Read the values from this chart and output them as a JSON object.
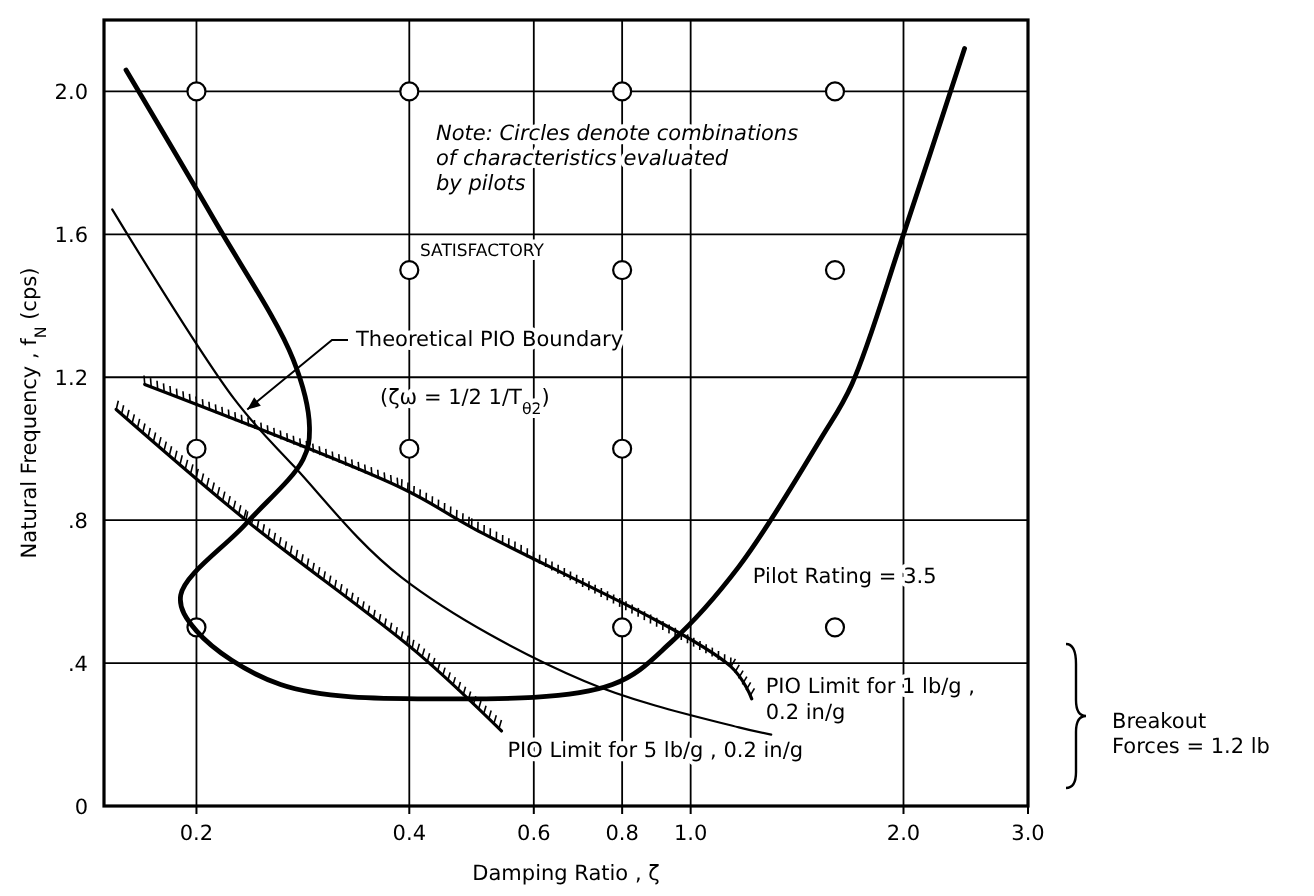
{
  "chart_data": {
    "type": "line",
    "xlabel": "Damping Ratio , ζ",
    "ylabel": "Natural Frequency , f$_{N}$ (cps)",
    "log": "x",
    "grid": true,
    "xlim": [
      0.148,
      3.0
    ],
    "ylim": [
      0,
      2.2
    ],
    "xticks": [
      0.2,
      0.4,
      0.6,
      0.8,
      {
        "value": 1.0,
        "label": "1.0"
      },
      {
        "value": 2.0,
        "label": "2.0"
      },
      {
        "value": 3.0,
        "label": "3.0"
      }
    ],
    "yticks": [
      0,
      {
        "value": 0.4,
        "label": ".4"
      },
      {
        "value": 0.8,
        "label": ".8"
      },
      1.2,
      1.6,
      {
        "value": 2.0,
        "label": "2.0"
      }
    ],
    "series": [
      {
        "type": "scatter",
        "marker": "circle",
        "color": "#000000",
        "x": [
          0.2,
          0.4,
          0.8,
          1.6,
          0.4,
          0.8,
          1.6,
          0.2,
          0.4,
          0.8,
          0.2,
          0.8,
          1.6
        ],
        "values": [
          2.0,
          2.0,
          2.0,
          2.0,
          1.5,
          1.5,
          1.5,
          1.0,
          1.0,
          1.0,
          0.5,
          0.5,
          0.5
        ]
      },
      {
        "name": "Pilot Rating = 3.5",
        "color": "#000000",
        "x": [
          0.159,
          0.212,
          0.274,
          0.289,
          0.283,
          0.235,
          0.19,
          0.2,
          0.263,
          0.44,
          0.775,
          0.94,
          1.17,
          1.53,
          1.69,
          2.0,
          2.44
        ],
        "values": [
          2.06,
          1.64,
          1.25,
          1.06,
          0.97,
          0.79,
          0.59,
          0.49,
          0.34,
          0.3,
          0.34,
          0.46,
          0.67,
          1.03,
          1.18,
          1.6,
          2.12
        ]
      },
      {
        "color": "#000000",
        "x": [
          0.152,
          0.226,
          0.275,
          0.39,
          0.707,
          1.17,
          1.3
        ],
        "values": [
          1.67,
          1.14,
          0.95,
          0.64,
          0.35,
          0.22,
          0.2
        ]
      },
      {
        "name": "PIO Limit for 1 lb/g ,\n0.2 in/g",
        "color": "#000000",
        "x": [
          0.169,
          0.39,
          0.49,
          1.14,
          1.22
        ],
        "values": [
          1.18,
          0.89,
          0.78,
          0.39,
          0.3
        ]
      },
      {
        "name": "PIO Limit for 5 lb/g , 0.2 in/g",
        "color": "#000000",
        "x": [
          0.154,
          0.235,
          0.41,
          0.54
        ],
        "values": [
          1.11,
          0.8,
          0.43,
          0.21
        ]
      }
    ],
    "annotations": [
      "Note: Circles denote combinations\nof characteristics evaluated\nby pilots",
      "SATISFACTORY",
      {
        "text": "Theoretical PIO Boundary",
        "x": 0.236,
        "y": 1.11
      },
      "(ζω = 1/2 1/T$_{θ2}$)",
      "Breakout\nForces = 1.2 lb"
    ]
  }
}
